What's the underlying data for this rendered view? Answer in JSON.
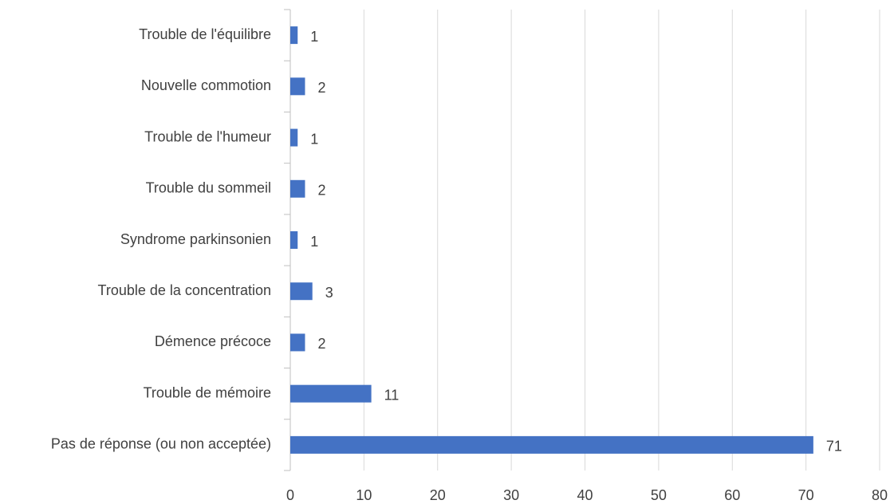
{
  "chart_data": {
    "type": "barh",
    "categories": [
      "Trouble de l'équilibre",
      "Nouvelle commotion",
      "Trouble de l'humeur",
      "Trouble du sommeil",
      "Syndrome parkinsonien",
      "Trouble de la concentration",
      "Démence précoce",
      "Trouble de mémoire",
      "Pas de réponse (ou non acceptée)"
    ],
    "values": [
      1,
      2,
      1,
      2,
      1,
      3,
      2,
      11,
      71
    ],
    "color": "#4472c4",
    "xlim": [
      0,
      80
    ],
    "xticks": [
      0,
      10,
      20,
      30,
      40,
      50,
      60,
      70,
      80
    ],
    "grid": true
  }
}
